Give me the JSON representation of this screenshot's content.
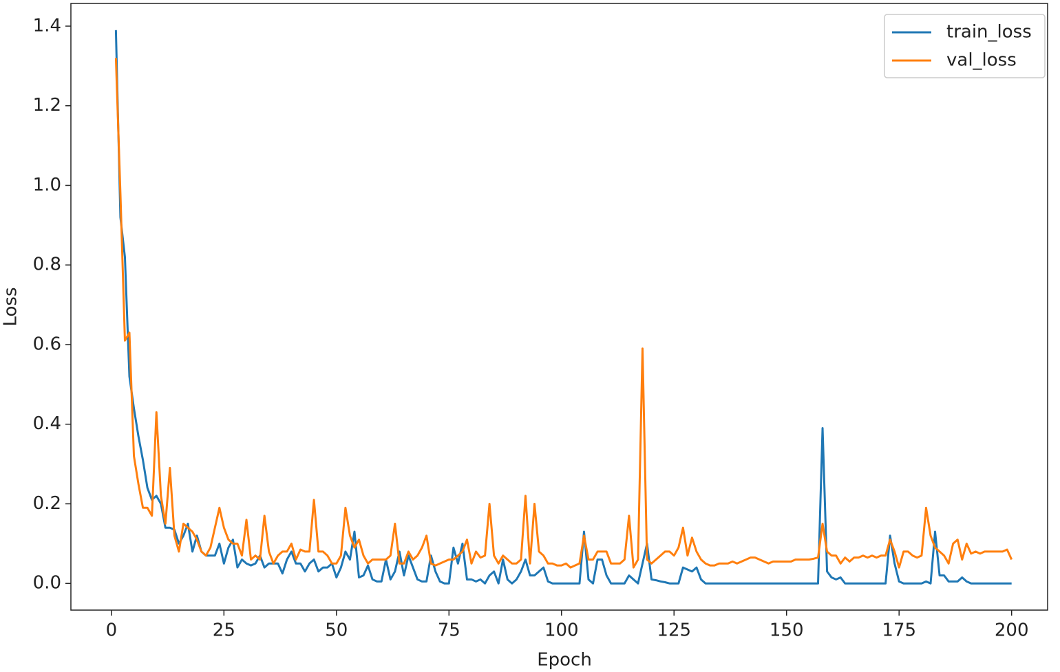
{
  "chart_data": {
    "type": "line",
    "xlabel": "Epoch",
    "ylabel": "Loss",
    "x": [
      1,
      2,
      3,
      4,
      5,
      6,
      7,
      8,
      9,
      10,
      11,
      12,
      13,
      14,
      15,
      16,
      17,
      18,
      19,
      20,
      21,
      22,
      23,
      24,
      25,
      26,
      27,
      28,
      29,
      30,
      31,
      32,
      33,
      34,
      35,
      36,
      37,
      38,
      39,
      40,
      41,
      42,
      43,
      44,
      45,
      46,
      47,
      48,
      49,
      50,
      51,
      52,
      53,
      54,
      55,
      56,
      57,
      58,
      59,
      60,
      61,
      62,
      63,
      64,
      65,
      66,
      67,
      68,
      69,
      70,
      71,
      72,
      73,
      74,
      75,
      76,
      77,
      78,
      79,
      80,
      81,
      82,
      83,
      84,
      85,
      86,
      87,
      88,
      89,
      90,
      91,
      92,
      93,
      94,
      95,
      96,
      97,
      98,
      99,
      100,
      101,
      102,
      103,
      104,
      105,
      106,
      107,
      108,
      109,
      110,
      111,
      112,
      113,
      114,
      115,
      116,
      117,
      118,
      119,
      120,
      121,
      122,
      123,
      124,
      125,
      126,
      127,
      128,
      129,
      130,
      131,
      132,
      133,
      134,
      135,
      136,
      137,
      138,
      139,
      140,
      141,
      142,
      143,
      144,
      145,
      146,
      147,
      148,
      149,
      150,
      151,
      152,
      153,
      154,
      155,
      156,
      157,
      158,
      159,
      160,
      161,
      162,
      163,
      164,
      165,
      166,
      167,
      168,
      169,
      170,
      171,
      172,
      173,
      174,
      175,
      176,
      177,
      178,
      179,
      180,
      181,
      182,
      183,
      184,
      185,
      186,
      187,
      188,
      189,
      190,
      191,
      192,
      193,
      194,
      195,
      196,
      197,
      198,
      199,
      200
    ],
    "series": [
      {
        "name": "train_loss",
        "color": "#1f77b4",
        "values": [
          1.39,
          0.92,
          0.82,
          0.52,
          0.44,
          0.37,
          0.31,
          0.24,
          0.21,
          0.22,
          0.2,
          0.14,
          0.14,
          0.135,
          0.1,
          0.12,
          0.15,
          0.08,
          0.12,
          0.08,
          0.07,
          0.07,
          0.07,
          0.1,
          0.05,
          0.09,
          0.11,
          0.04,
          0.06,
          0.05,
          0.045,
          0.05,
          0.07,
          0.04,
          0.05,
          0.05,
          0.05,
          0.025,
          0.06,
          0.08,
          0.05,
          0.05,
          0.03,
          0.05,
          0.06,
          0.03,
          0.04,
          0.04,
          0.05,
          0.015,
          0.04,
          0.08,
          0.06,
          0.13,
          0.015,
          0.02,
          0.045,
          0.01,
          0.005,
          0.005,
          0.06,
          0.01,
          0.03,
          0.08,
          0.02,
          0.07,
          0.04,
          0.01,
          0.005,
          0.005,
          0.07,
          0.03,
          0.005,
          0,
          0,
          0.09,
          0.05,
          0.1,
          0.01,
          0.01,
          0.005,
          0.01,
          0,
          0.02,
          0.03,
          0,
          0.06,
          0.01,
          0,
          0.01,
          0.03,
          0.06,
          0.02,
          0.02,
          0.03,
          0.04,
          0.005,
          0,
          0,
          0,
          0,
          0,
          0,
          0,
          0.13,
          0.01,
          0,
          0.06,
          0.06,
          0.02,
          0,
          0,
          0,
          0,
          0.02,
          0.01,
          0,
          0.05,
          0.1,
          0.01,
          0.008,
          0.005,
          0.003,
          0,
          0,
          0,
          0.04,
          0.035,
          0.03,
          0.04,
          0.01,
          0,
          0,
          0,
          0,
          0,
          0,
          0,
          0,
          0,
          0,
          0,
          0,
          0,
          0,
          0,
          0,
          0,
          0,
          0,
          0,
          0,
          0,
          0,
          0,
          0,
          0,
          0.39,
          0.03,
          0.015,
          0.01,
          0.015,
          0,
          0,
          0,
          0,
          0,
          0,
          0,
          0,
          0,
          0,
          0.12,
          0.05,
          0.005,
          0,
          0,
          0,
          0,
          0,
          0.005,
          0,
          0.13,
          0.02,
          0.02,
          0.005,
          0.005,
          0.005,
          0.015,
          0.005,
          0,
          0,
          0,
          0,
          0,
          0,
          0,
          0,
          0,
          0
        ]
      },
      {
        "name": "val_loss",
        "color": "#ff7f0e",
        "values": [
          1.32,
          0.98,
          0.61,
          0.63,
          0.32,
          0.25,
          0.19,
          0.19,
          0.17,
          0.43,
          0.22,
          0.15,
          0.29,
          0.12,
          0.08,
          0.15,
          0.14,
          0.13,
          0.11,
          0.08,
          0.07,
          0.09,
          0.14,
          0.19,
          0.14,
          0.11,
          0.1,
          0.1,
          0.07,
          0.16,
          0.06,
          0.07,
          0.06,
          0.17,
          0.08,
          0.05,
          0.07,
          0.08,
          0.08,
          0.1,
          0.06,
          0.085,
          0.08,
          0.08,
          0.21,
          0.08,
          0.08,
          0.07,
          0.05,
          0.05,
          0.07,
          0.19,
          0.12,
          0.09,
          0.11,
          0.07,
          0.05,
          0.06,
          0.06,
          0.06,
          0.06,
          0.07,
          0.15,
          0.05,
          0.05,
          0.08,
          0.06,
          0.07,
          0.09,
          0.12,
          0.05,
          0.045,
          0.05,
          0.055,
          0.06,
          0.06,
          0.07,
          0.08,
          0.11,
          0.05,
          0.08,
          0.065,
          0.07,
          0.2,
          0.07,
          0.05,
          0.07,
          0.06,
          0.05,
          0.05,
          0.06,
          0.22,
          0.05,
          0.2,
          0.08,
          0.07,
          0.05,
          0.05,
          0.045,
          0.045,
          0.05,
          0.04,
          0.045,
          0.05,
          0.12,
          0.06,
          0.06,
          0.08,
          0.08,
          0.08,
          0.05,
          0.05,
          0.05,
          0.06,
          0.17,
          0.04,
          0.06,
          0.59,
          0.06,
          0.05,
          0.06,
          0.07,
          0.08,
          0.08,
          0.07,
          0.09,
          0.14,
          0.07,
          0.115,
          0.08,
          0.06,
          0.05,
          0.045,
          0.045,
          0.05,
          0.05,
          0.05,
          0.055,
          0.05,
          0.055,
          0.06,
          0.065,
          0.065,
          0.06,
          0.055,
          0.05,
          0.055,
          0.055,
          0.055,
          0.055,
          0.055,
          0.06,
          0.06,
          0.06,
          0.06,
          0.062,
          0.065,
          0.15,
          0.08,
          0.07,
          0.07,
          0.05,
          0.065,
          0.055,
          0.065,
          0.065,
          0.07,
          0.065,
          0.07,
          0.065,
          0.07,
          0.07,
          0.11,
          0.08,
          0.04,
          0.08,
          0.08,
          0.07,
          0.065,
          0.07,
          0.19,
          0.12,
          0.09,
          0.08,
          0.07,
          0.05,
          0.1,
          0.11,
          0.06,
          0.1,
          0.075,
          0.08,
          0.075,
          0.08,
          0.08,
          0.08,
          0.08,
          0.08,
          0.085,
          0.06
        ]
      }
    ],
    "xlim": [
      -9,
      208
    ],
    "xticks": [
      0,
      25,
      50,
      75,
      100,
      125,
      150,
      175,
      200
    ],
    "ylim": [
      -0.067,
      1.457
    ],
    "yticks": [
      {
        "value": 0,
        "label": "0.0"
      },
      0.2,
      0.4,
      0.6,
      0.8,
      {
        "value": 1,
        "label": "1.0"
      },
      1.2,
      1.4
    ],
    "grid": false,
    "legend": "upper right"
  }
}
